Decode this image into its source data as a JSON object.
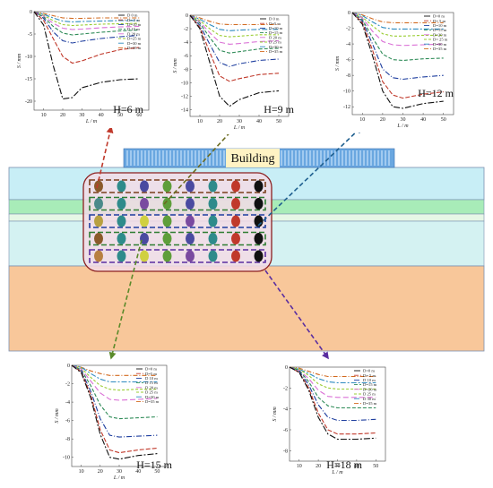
{
  "building_label": "Building",
  "colors": {
    "stratum_top": "#c8eef6",
    "stratum_green": "#a8ecb8",
    "stratum_mid": "#d4f2f2",
    "stratum_bottom": "#f8c79a",
    "tunnel_box_fill": "#f3dce6",
    "tunnel_box_edge": "#8b2020",
    "building_fill": "#6aa7e0",
    "building_band": "#fff3c4"
  },
  "depth_colors": {
    "D=0 m": "#6a6a6a",
    "D=5 m": "#d2691e",
    "D=10 m": "#2e8bc0",
    "D=15 m": "#9acd32",
    "D=20 m": "#da70d6",
    "D=25 m": "#2e8b57",
    "D=30 m": "#1f3f9f",
    "D=35 m": "#c0392b"
  },
  "tunnel_rows": [
    {
      "line_color": "#7a3e1c",
      "points": [
        "#8b5a2b",
        "#2e8b8b",
        "#4a4aa0",
        "#5e9e3a",
        "#4a4aa0",
        "#2e8b8b",
        "#c0392b",
        "#111111"
      ]
    },
    {
      "line_color": "#2e7d32",
      "points": [
        "#4a8a8a",
        "#2e8b8b",
        "#7a4aa0",
        "#5e9e3a",
        "#4a4aa0",
        "#2e8b8b",
        "#c0392b",
        "#111111"
      ]
    },
    {
      "line_color": "#1f3f9f",
      "points": [
        "#b8a040",
        "#2e8b8b",
        "#d0d040",
        "#5e9e3a",
        "#7a4aa0",
        "#2e8b8b",
        "#c0392b",
        "#111111"
      ]
    },
    {
      "line_color": "#2e7d32",
      "points": [
        "#8b5a2b",
        "#2e8b8b",
        "#4a4aa0",
        "#5e9e3a",
        "#4a4aa0",
        "#2e8b8b",
        "#c0392b",
        "#111111"
      ]
    },
    {
      "line_color": "#5a2ea0",
      "points": [
        "#b88040",
        "#2e8b8b",
        "#d0d040",
        "#5e9e3a",
        "#7a4aa0",
        "#2e8b8b",
        "#c0392b",
        "#111111"
      ]
    }
  ],
  "chart_data": [
    {
      "type": "line",
      "panel_label": "H=6 m",
      "xlabel": "L / m",
      "ylabel": "S / mm",
      "xlim": [
        5,
        65
      ],
      "ylim": [
        -22,
        0
      ],
      "xticks": [
        10,
        20,
        30,
        40,
        50,
        60
      ],
      "yticks": [
        0,
        -5,
        -10,
        -15,
        -20
      ],
      "legend": [
        "D 0 m",
        "D= 5 m",
        "D=10 m",
        "D 15 m",
        "D 20 m",
        "D=25 m",
        "D=30 m",
        "D=35 m"
      ],
      "x": [
        5,
        10,
        15,
        20,
        25,
        30,
        40,
        50,
        60
      ],
      "series": [
        {
          "name": "D 0 m",
          "color": "#111111",
          "values": [
            0,
            -3,
            -12,
            -19.5,
            -19.2,
            -17,
            -15.8,
            -15.2,
            -15
          ]
        },
        {
          "name": "D= 5 m",
          "color": "#c0392b",
          "values": [
            0,
            -2,
            -6,
            -10,
            -11.5,
            -11,
            -9.5,
            -8.5,
            -8
          ]
        },
        {
          "name": "D=10 m",
          "color": "#1f3f9f",
          "values": [
            0,
            -1.5,
            -4.5,
            -6.5,
            -7,
            -6.6,
            -6,
            -5.6,
            -5.3
          ]
        },
        {
          "name": "D 15 m",
          "color": "#2e8b57",
          "values": [
            0,
            -1.2,
            -3.3,
            -4.8,
            -5.2,
            -5,
            -4.6,
            -4.3,
            -4.1
          ]
        },
        {
          "name": "D 20 m",
          "color": "#da70d6",
          "values": [
            0,
            -1,
            -2.6,
            -3.7,
            -4,
            -3.9,
            -3.6,
            -3.4,
            -3.3
          ]
        },
        {
          "name": "D=25 m",
          "color": "#9acd32",
          "values": [
            0,
            -0.8,
            -2,
            -2.9,
            -3.1,
            -3,
            -2.8,
            -2.7,
            -2.6
          ]
        },
        {
          "name": "D=30 m",
          "color": "#2e8bc0",
          "values": [
            0,
            -0.6,
            -1.4,
            -2.1,
            -2.3,
            -2.2,
            -2.1,
            -2,
            -2
          ]
        },
        {
          "name": "D=35 m",
          "color": "#d2691e",
          "values": [
            0,
            -0.4,
            -0.9,
            -1.4,
            -1.5,
            -1.5,
            -1.4,
            -1.4,
            -1.4
          ]
        }
      ]
    },
    {
      "type": "line",
      "panel_label": "H=9 m",
      "xlabel": "L / m",
      "ylabel": "S / mm",
      "xlim": [
        5,
        55
      ],
      "ylim": [
        -15,
        0
      ],
      "xticks": [
        10,
        20,
        30,
        40,
        50
      ],
      "yticks": [
        0,
        -2,
        -4,
        -6,
        -8,
        -10,
        -12,
        -14
      ],
      "legend": [
        "D 0 m",
        "D=5 m",
        "D=10 m",
        "D=15 m",
        "D 20 m",
        "D 25 m",
        "D=30 m",
        "D=35 m"
      ],
      "x": [
        5,
        10,
        15,
        20,
        25,
        30,
        40,
        50
      ],
      "series": [
        {
          "name": "D 0 m",
          "color": "#111111",
          "values": [
            0,
            -2,
            -7,
            -12,
            -13.5,
            -12.5,
            -11.5,
            -11.2
          ]
        },
        {
          "name": "D=5 m",
          "color": "#c0392b",
          "values": [
            0,
            -1.8,
            -5.5,
            -9,
            -9.8,
            -9.4,
            -8.8,
            -8.6
          ]
        },
        {
          "name": "D=10 m",
          "color": "#1f3f9f",
          "values": [
            0,
            -1.5,
            -4.3,
            -7,
            -7.6,
            -7.2,
            -6.7,
            -6.5
          ]
        },
        {
          "name": "D=15 m",
          "color": "#2e8b57",
          "values": [
            0,
            -1.2,
            -3.3,
            -5.2,
            -5.6,
            -5.4,
            -5,
            -4.9
          ]
        },
        {
          "name": "D 20 m",
          "color": "#da70d6",
          "values": [
            0,
            -1,
            -2.6,
            -4,
            -4.3,
            -4.2,
            -3.9,
            -3.8
          ]
        },
        {
          "name": "D 25 m",
          "color": "#9acd32",
          "values": [
            0,
            -0.8,
            -2,
            -3,
            -3.2,
            -3.1,
            -2.9,
            -2.9
          ]
        },
        {
          "name": "D=30 m",
          "color": "#2e8bc0",
          "values": [
            0,
            -0.6,
            -1.4,
            -2.1,
            -2.3,
            -2.2,
            -2.1,
            -2.1
          ]
        },
        {
          "name": "D=35 m",
          "color": "#d2691e",
          "values": [
            0,
            -0.4,
            -0.9,
            -1.3,
            -1.4,
            -1.4,
            -1.4,
            -1.4
          ]
        }
      ]
    },
    {
      "type": "line",
      "panel_label": "H=12 m",
      "xlabel": "L / m",
      "ylabel": "S / mm",
      "xlim": [
        5,
        55
      ],
      "ylim": [
        -13,
        0
      ],
      "xticks": [
        10,
        20,
        30,
        40,
        50
      ],
      "yticks": [
        0,
        -2,
        -4,
        -6,
        -8,
        -10,
        -12
      ],
      "legend": [
        "D=0 m",
        "D= 5 m",
        "D=10 m",
        "D=15 m",
        "D=20 m",
        "D= 25 m",
        "D=30 m",
        "D=35 m"
      ],
      "x": [
        5,
        10,
        15,
        20,
        25,
        30,
        40,
        50
      ],
      "series": [
        {
          "name": "D=0 m",
          "color": "#111111",
          "values": [
            0,
            -1.5,
            -5.5,
            -10,
            -12,
            -12.2,
            -11.6,
            -11.3
          ]
        },
        {
          "name": "D= 5 m",
          "color": "#c0392b",
          "values": [
            0,
            -1.3,
            -4.8,
            -8.8,
            -10.5,
            -10.9,
            -10.4,
            -10.1
          ]
        },
        {
          "name": "D=10 m",
          "color": "#1f3f9f",
          "values": [
            0,
            -1.1,
            -4,
            -7.2,
            -8.3,
            -8.5,
            -8.2,
            -8
          ]
        },
        {
          "name": "D=15 m",
          "color": "#2e8b57",
          "values": [
            0,
            -0.9,
            -3.2,
            -5.3,
            -6,
            -6.1,
            -5.9,
            -5.8
          ]
        },
        {
          "name": "D=20 m",
          "color": "#da70d6",
          "values": [
            0,
            -0.7,
            -2.4,
            -3.7,
            -4.1,
            -4.2,
            -4.1,
            -4
          ]
        },
        {
          "name": "D= 25 m",
          "color": "#9acd32",
          "values": [
            0,
            -0.6,
            -1.7,
            -2.7,
            -3,
            -3,
            -2.9,
            -2.9
          ]
        },
        {
          "name": "D=30 m",
          "color": "#2e8bc0",
          "values": [
            0,
            -0.4,
            -1.2,
            -1.9,
            -2.1,
            -2.1,
            -2.1,
            -2.1
          ]
        },
        {
          "name": "D=35 m",
          "color": "#d2691e",
          "values": [
            0,
            -0.3,
            -0.8,
            -1.2,
            -1.3,
            -1.3,
            -1.3,
            -1.3
          ]
        }
      ]
    },
    {
      "type": "line",
      "panel_label": "H=15 m",
      "xlabel": "L / m",
      "ylabel": "S / mm",
      "xlim": [
        5,
        55
      ],
      "ylim": [
        -11,
        0
      ],
      "xticks": [
        10,
        20,
        30,
        40,
        50
      ],
      "yticks": [
        0,
        -2,
        -4,
        -6,
        -8,
        -10
      ],
      "legend": [
        "D=0 m",
        "D=5 m",
        "D 10 m",
        "D 15 m",
        "D 20 m",
        "D 25 m",
        "D=30 m",
        "D=35 m"
      ],
      "x": [
        5,
        10,
        15,
        20,
        25,
        30,
        40,
        50
      ],
      "series": [
        {
          "name": "D=0 m",
          "color": "#111111",
          "values": [
            0,
            -0.8,
            -3.5,
            -7.5,
            -10,
            -10.2,
            -9.8,
            -9.6
          ]
        },
        {
          "name": "D=5 m",
          "color": "#c0392b",
          "values": [
            0,
            -0.7,
            -3.2,
            -7,
            -9.2,
            -9.5,
            -9.2,
            -9
          ]
        },
        {
          "name": "D 10 m",
          "color": "#1f3f9f",
          "values": [
            0,
            -0.6,
            -2.8,
            -5.8,
            -7.6,
            -7.8,
            -7.7,
            -7.6
          ]
        },
        {
          "name": "D 15 m",
          "color": "#2e8b57",
          "values": [
            0,
            -0.5,
            -2.2,
            -4.3,
            -5.6,
            -5.8,
            -5.7,
            -5.6
          ]
        },
        {
          "name": "D 20 m",
          "color": "#da70d6",
          "values": [
            0,
            -0.4,
            -1.7,
            -3,
            -3.7,
            -3.8,
            -3.7,
            -3.6
          ]
        },
        {
          "name": "D 25 m",
          "color": "#9acd32",
          "values": [
            0,
            -0.3,
            -1.3,
            -2.2,
            -2.6,
            -2.7,
            -2.6,
            -2.6
          ]
        },
        {
          "name": "D=30 m",
          "color": "#2e8bc0",
          "values": [
            0,
            -0.2,
            -0.9,
            -1.5,
            -1.8,
            -1.8,
            -1.8,
            -1.8
          ]
        },
        {
          "name": "D=35 m",
          "color": "#d2691e",
          "values": [
            0,
            -0.2,
            -0.6,
            -0.9,
            -1.1,
            -1.1,
            -1.1,
            -1.1
          ]
        }
      ]
    },
    {
      "type": "line",
      "panel_label": "H=18 m",
      "xlabel": "L / m",
      "ylabel": "S / mm",
      "xlim": [
        5,
        55
      ],
      "ylim": [
        -9,
        0
      ],
      "xticks": [
        10,
        20,
        30,
        40,
        50
      ],
      "yticks": [
        0,
        -2,
        -4,
        -6,
        -8
      ],
      "legend": [
        "D=0 m",
        "D= 5 m",
        "D 10 m",
        "D=15 m",
        "D=20 m",
        "D 25 m",
        "D 30 m",
        "D=35 m"
      ],
      "x": [
        5,
        10,
        15,
        20,
        25,
        30,
        40,
        50
      ],
      "series": [
        {
          "name": "D=0 m",
          "color": "#111111",
          "values": [
            0,
            -0.5,
            -2.2,
            -4.8,
            -6.4,
            -6.9,
            -6.9,
            -6.8
          ]
        },
        {
          "name": "D= 5 m",
          "color": "#c0392b",
          "values": [
            0,
            -0.5,
            -2,
            -4.4,
            -6,
            -6.4,
            -6.4,
            -6.3
          ]
        },
        {
          "name": "D 10 m",
          "color": "#1f3f9f",
          "values": [
            0,
            -0.4,
            -1.7,
            -3.6,
            -4.8,
            -5.1,
            -5.1,
            -5
          ]
        },
        {
          "name": "D=15 m",
          "color": "#2e8b57",
          "values": [
            0,
            -0.3,
            -1.4,
            -2.9,
            -3.7,
            -3.9,
            -3.9,
            -3.9
          ]
        },
        {
          "name": "D=20 m",
          "color": "#da70d6",
          "values": [
            0,
            -0.3,
            -1.1,
            -2.2,
            -2.8,
            -2.9,
            -2.9,
            -2.9
          ]
        },
        {
          "name": "D 25 m",
          "color": "#9acd32",
          "values": [
            0,
            -0.2,
            -0.8,
            -1.6,
            -2,
            -2.1,
            -2.1,
            -2.1
          ]
        },
        {
          "name": "D 30 m",
          "color": "#2e8bc0",
          "values": [
            0,
            -0.2,
            -0.6,
            -1.1,
            -1.4,
            -1.5,
            -1.5,
            -1.5
          ]
        },
        {
          "name": "D=35 m",
          "color": "#d2691e",
          "values": [
            0,
            -0.1,
            -0.4,
            -0.7,
            -0.9,
            -0.9,
            -0.9,
            -0.9
          ]
        }
      ]
    }
  ]
}
